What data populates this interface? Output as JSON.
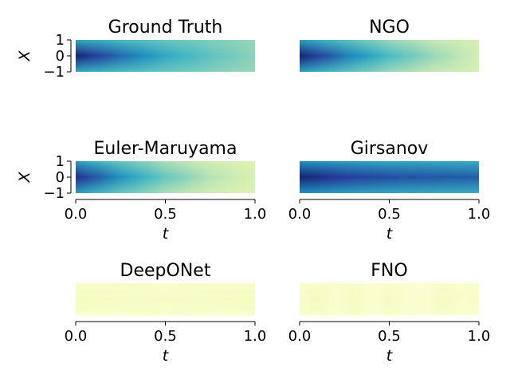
{
  "chart_data": [
    {
      "type": "heatmap",
      "title": "Ground Truth",
      "xlabel": "",
      "ylabel": "X",
      "xlim": [
        0.0,
        1.0
      ],
      "ylim": [
        -1,
        1
      ],
      "x_ticks": [],
      "y_ticks": [
        "1",
        "0",
        "−1"
      ],
      "colormap": "YlGnBu",
      "grid": false,
      "profile_t": [
        0.0,
        0.25,
        0.5,
        0.75,
        1.0
      ],
      "center_intensity": [
        0.95,
        0.72,
        0.55,
        0.44,
        0.35
      ],
      "edge_intensity": [
        0.55,
        0.48,
        0.42,
        0.37,
        0.33
      ]
    },
    {
      "type": "heatmap",
      "title": "NGO",
      "xlabel": "",
      "ylabel": "",
      "xlim": [
        0.0,
        1.0
      ],
      "ylim": [
        -1,
        1
      ],
      "x_ticks": [],
      "y_ticks": [],
      "colormap": "YlGnBu",
      "grid": false,
      "profile_t": [
        0.0,
        0.25,
        0.5,
        0.75,
        1.0
      ],
      "center_intensity": [
        0.95,
        0.68,
        0.48,
        0.33,
        0.22
      ],
      "edge_intensity": [
        0.58,
        0.45,
        0.33,
        0.25,
        0.2
      ]
    },
    {
      "type": "heatmap",
      "title": "Euler-Maruyama",
      "xlabel": "t",
      "ylabel": "X",
      "xlim": [
        0.0,
        1.0
      ],
      "ylim": [
        -1,
        1
      ],
      "x_ticks": [
        "0.0",
        "0.5",
        "1.0"
      ],
      "y_ticks": [
        "1",
        "0",
        "−1"
      ],
      "colormap": "YlGnBu",
      "grid": false,
      "profile_t": [
        0.0,
        0.25,
        0.5,
        0.75,
        1.0
      ],
      "center_intensity": [
        0.9,
        0.62,
        0.42,
        0.28,
        0.2
      ],
      "edge_intensity": [
        0.58,
        0.42,
        0.3,
        0.22,
        0.17
      ]
    },
    {
      "type": "heatmap",
      "title": "Girsanov",
      "xlabel": "t",
      "ylabel": "",
      "xlim": [
        0.0,
        1.0
      ],
      "ylim": [
        -1,
        1
      ],
      "x_ticks": [
        "0.0",
        "0.5",
        "1.0"
      ],
      "y_ticks": [],
      "colormap": "YlGnBu",
      "grid": false,
      "profile_t": [
        0.0,
        0.25,
        0.5,
        0.75,
        1.0
      ],
      "center_intensity": [
        0.95,
        0.85,
        0.8,
        0.77,
        0.75
      ],
      "edge_intensity": [
        0.62,
        0.58,
        0.55,
        0.54,
        0.53
      ]
    },
    {
      "type": "heatmap",
      "title": "DeepONet",
      "xlabel": "t",
      "ylabel": "",
      "xlim": [
        0.0,
        1.0
      ],
      "ylim": [
        -1,
        1
      ],
      "x_ticks": [
        "0.0",
        "0.5",
        "1.0"
      ],
      "y_ticks": [],
      "colormap": "YlGnBu",
      "grid": false,
      "profile_t": [
        0.0,
        0.25,
        0.5,
        0.75,
        1.0
      ],
      "center_intensity": [
        0.08,
        0.07,
        0.06,
        0.07,
        0.08
      ],
      "edge_intensity": [
        0.04,
        0.04,
        0.04,
        0.04,
        0.04
      ]
    },
    {
      "type": "heatmap",
      "title": "FNO",
      "xlabel": "t",
      "ylabel": "",
      "xlim": [
        0.0,
        1.0
      ],
      "ylim": [
        -1,
        1
      ],
      "x_ticks": [
        "0.0",
        "0.5",
        "1.0"
      ],
      "y_ticks": [],
      "colormap": "YlGnBu",
      "grid": false,
      "profile_t": [
        0.0,
        0.1,
        0.2,
        0.3,
        0.4,
        0.5,
        0.6,
        0.7,
        0.8,
        0.9,
        1.0
      ],
      "center_intensity": [
        0.05,
        0.09,
        0.04,
        0.08,
        0.03,
        0.07,
        0.04,
        0.03,
        0.08,
        0.04,
        0.06
      ],
      "edge_intensity": [
        0.03,
        0.05,
        0.03,
        0.05,
        0.02,
        0.04,
        0.03,
        0.02,
        0.05,
        0.03,
        0.04
      ]
    }
  ]
}
